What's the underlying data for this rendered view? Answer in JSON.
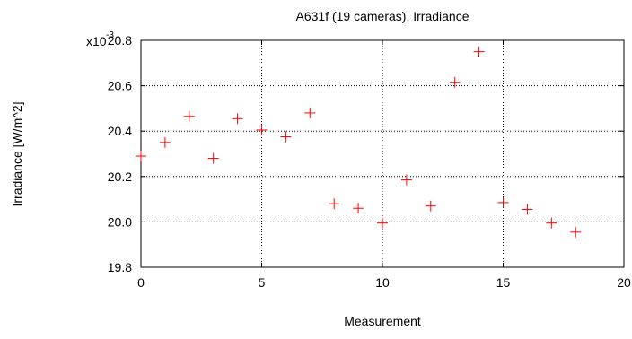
{
  "chart_data": {
    "type": "scatter",
    "title": "A631f (19 cameras), Irradiance",
    "xlabel": "Measurement",
    "ylabel": "Irradiance [W/m^2]",
    "y_multiplier": {
      "base": "x10",
      "exponent": "-3"
    },
    "xlim": [
      0,
      20
    ],
    "ylim": [
      19.8,
      20.8
    ],
    "x_ticks": [
      0,
      5,
      10,
      15,
      20
    ],
    "x_tick_labels": [
      "0",
      "5",
      "10",
      "15",
      "20"
    ],
    "y_ticks": [
      19.8,
      20.0,
      20.2,
      20.4,
      20.6,
      20.8
    ],
    "y_tick_labels": [
      "19.8",
      "20.0",
      "20.2",
      "20.4",
      "20.6",
      "20.8"
    ],
    "grid": true,
    "marker": "+",
    "marker_color": "#ff0000",
    "series": [
      {
        "x": [
          0,
          1,
          2,
          3,
          4,
          5,
          6,
          7,
          8,
          9,
          10,
          11,
          12,
          13,
          14,
          15,
          16,
          17,
          18
        ],
        "y": [
          20.29,
          20.35,
          20.465,
          20.28,
          20.455,
          20.405,
          20.375,
          20.48,
          20.08,
          20.06,
          19.995,
          20.185,
          20.07,
          20.615,
          20.75,
          20.085,
          20.055,
          19.995,
          19.955
        ]
      }
    ]
  }
}
